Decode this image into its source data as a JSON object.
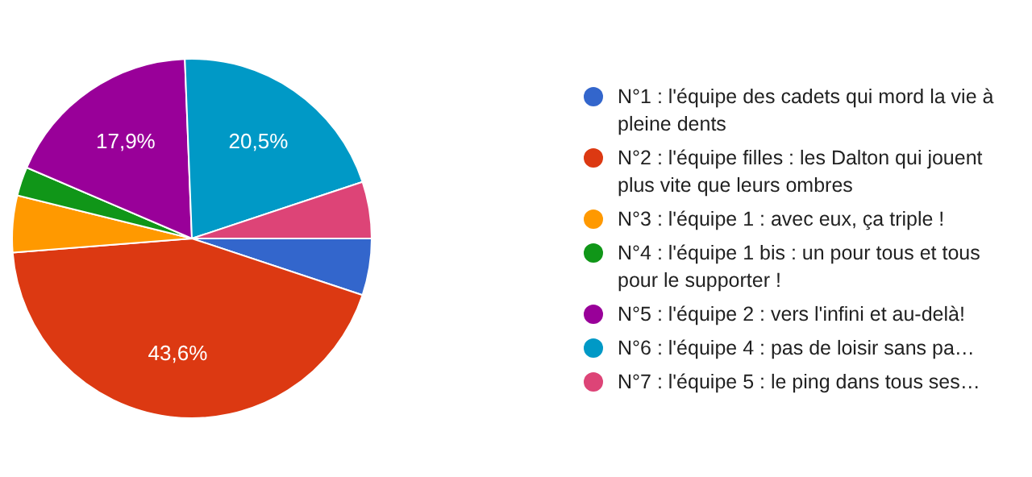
{
  "chart_data": {
    "type": "pie",
    "categories": [
      "N°1 : l'équipe des cadets qui mord la vie à pleine dents",
      "N°2 : l'équipe filles : les Dalton qui jouent plus vite que leurs ombres",
      "N°3 : l'équipe 1 : avec eux, ça triple !",
      "N°4 : l'équipe 1 bis : un pour tous et tous pour le supporter !",
      "N°5 : l'équipe 2 : vers l'infini et au-delà!",
      "N°6 : l'équipe 4 : pas de loisir sans pa…",
      "N°7 : l'équipe 5 : le ping dans tous ses…"
    ],
    "values": [
      5.1,
      43.6,
      5.1,
      2.6,
      17.9,
      20.5,
      5.1
    ],
    "colors": [
      "#3366cc",
      "#dc3912",
      "#ff9900",
      "#109618",
      "#990099",
      "#0099c6",
      "#dd4477"
    ],
    "value_labels": [
      null,
      "43,6%",
      null,
      null,
      "17,9%",
      "20,5%",
      null
    ],
    "legend": "right"
  }
}
